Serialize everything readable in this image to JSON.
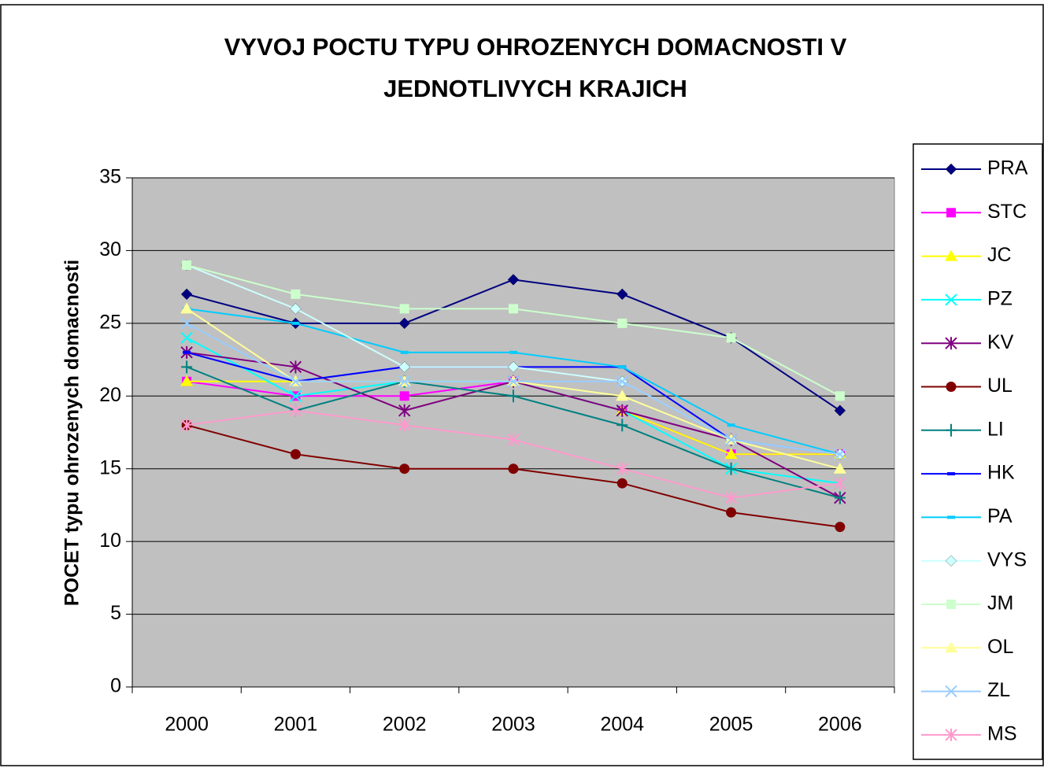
{
  "chart_data": {
    "type": "line",
    "title": [
      "VYVOJ POCTU TYPU OHROZENYCH  DOMACNOSTI V",
      "JEDNOTLIVYCH KRAJICH"
    ],
    "y_label": "POCET typu ohrozenych domacnosti",
    "categories": [
      "2000",
      "2001",
      "2002",
      "2003",
      "2004",
      "2005",
      "2006"
    ],
    "ylim": [
      0,
      35
    ],
    "yticks": [
      0,
      5,
      10,
      15,
      20,
      25,
      30,
      35
    ],
    "grid": true,
    "legend": "right",
    "series": [
      {
        "name": "PRA",
        "color": "#000080",
        "marker": "diamond",
        "values": [
          27,
          25,
          25,
          28,
          27,
          24,
          19
        ]
      },
      {
        "name": "STC",
        "color": "#ff00ff",
        "marker": "square",
        "values": [
          21,
          20,
          20,
          21,
          19,
          16,
          16
        ]
      },
      {
        "name": "JC",
        "color": "#ffff00",
        "marker": "triangle",
        "values": [
          21,
          21,
          21,
          21,
          19,
          16,
          16
        ]
      },
      {
        "name": "PZ",
        "color": "#00ffff",
        "marker": "x",
        "values": [
          24,
          20,
          21,
          21,
          19,
          15,
          14
        ]
      },
      {
        "name": "KV",
        "color": "#800080",
        "marker": "star",
        "values": [
          23,
          22,
          19,
          21,
          19,
          17,
          13
        ]
      },
      {
        "name": "UL",
        "color": "#800000",
        "marker": "circle",
        "values": [
          18,
          16,
          15,
          15,
          14,
          12,
          11
        ]
      },
      {
        "name": "LI",
        "color": "#008080",
        "marker": "plus",
        "values": [
          22,
          19,
          21,
          20,
          18,
          15,
          13
        ]
      },
      {
        "name": "HK",
        "color": "#0000ff",
        "marker": "dash",
        "values": [
          23,
          21,
          22,
          22,
          22,
          17,
          16
        ]
      },
      {
        "name": "PA",
        "color": "#00ccff",
        "marker": "dash",
        "values": [
          26,
          25,
          23,
          23,
          22,
          18,
          16
        ]
      },
      {
        "name": "VYS",
        "color": "#ccffff",
        "marker": "diamond",
        "values": [
          29,
          26,
          22,
          22,
          21,
          17,
          16
        ]
      },
      {
        "name": "JM",
        "color": "#ccffcc",
        "marker": "square",
        "values": [
          29,
          27,
          26,
          26,
          25,
          24,
          20
        ]
      },
      {
        "name": "OL",
        "color": "#ffff99",
        "marker": "triangle",
        "values": [
          26,
          21,
          21,
          21,
          20,
          17,
          15
        ]
      },
      {
        "name": "ZL",
        "color": "#99ccff",
        "marker": "x",
        "values": [
          25,
          21,
          21,
          21,
          21,
          17,
          16
        ]
      },
      {
        "name": "MS",
        "color": "#ff99cc",
        "marker": "star",
        "values": [
          18,
          19,
          18,
          17,
          15,
          13,
          14
        ]
      }
    ]
  }
}
